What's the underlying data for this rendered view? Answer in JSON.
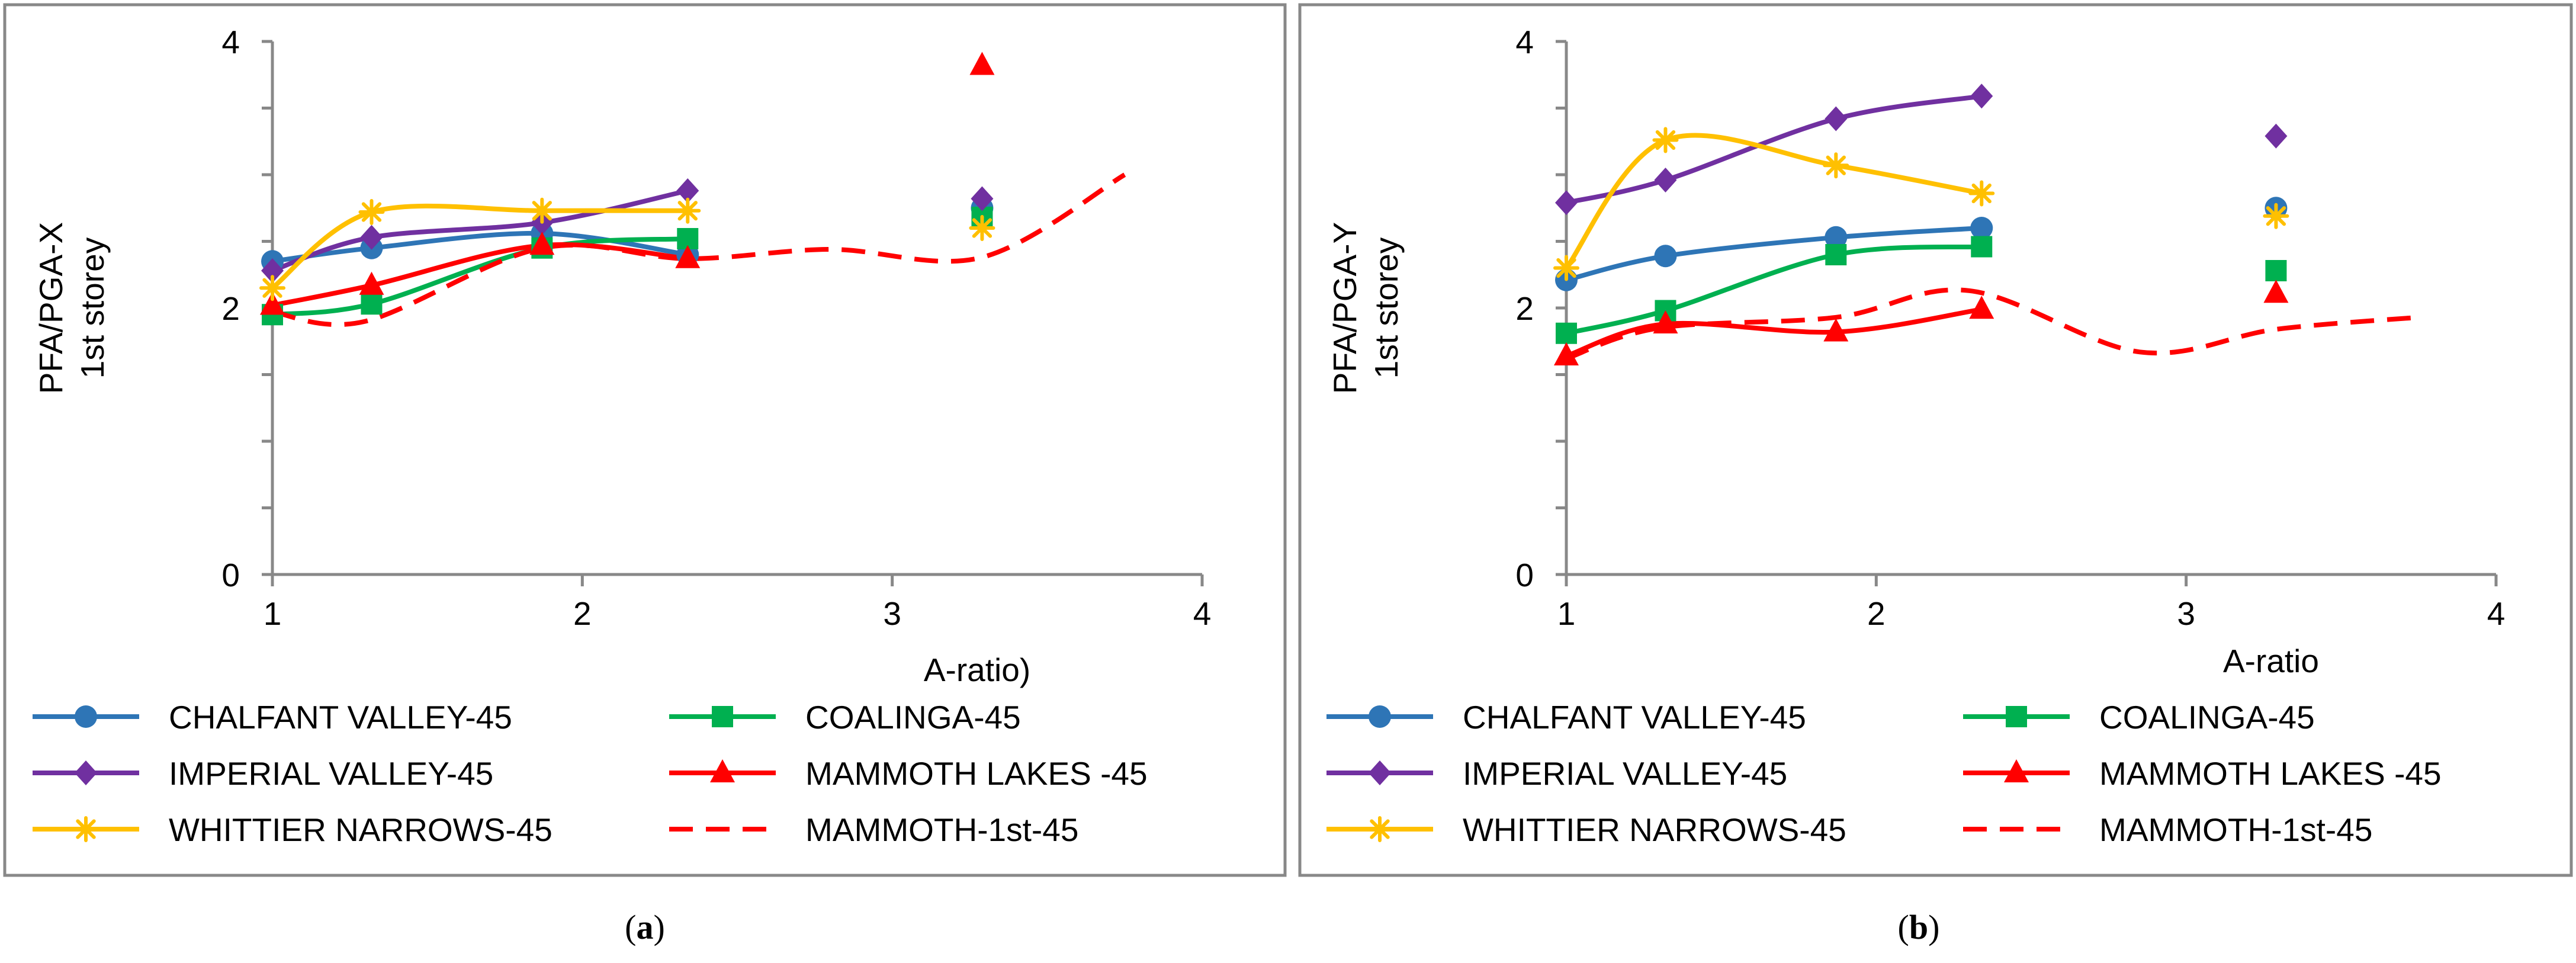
{
  "chart_data": [
    {
      "type": "line",
      "panel_label": "(a)",
      "panel_letter": "a",
      "ylabel_lines": [
        "PFA/PGA-X",
        "1st storey"
      ],
      "xlabel": "A-ratio)",
      "xlim": [
        1,
        4
      ],
      "ylim": [
        0,
        4
      ],
      "xticks": [
        "1",
        "2",
        "3",
        "4"
      ],
      "yticks": [
        "0",
        "2",
        "4"
      ],
      "series": [
        {
          "name": "CHALFANT VALLEY-45",
          "color": "#2E75B6",
          "marker": "circle",
          "style": "solid",
          "x": [
            1,
            1.32,
            1.87,
            2.34
          ],
          "y": [
            2.35,
            2.45,
            2.56,
            2.4
          ],
          "outlier": {
            "x": 3.29,
            "y": 2.75
          }
        },
        {
          "name": "COALINGA-45",
          "color": "#00B050",
          "marker": "square",
          "style": "solid",
          "x": [
            1,
            1.32,
            1.87,
            2.34
          ],
          "y": [
            1.95,
            2.03,
            2.45,
            2.52
          ],
          "outlier": {
            "x": 3.29,
            "y": 2.68
          }
        },
        {
          "name": "IMPERIAL VALLEY-45",
          "color": "#7030A0",
          "marker": "diamond",
          "style": "solid",
          "x": [
            1,
            1.32,
            1.87,
            2.34
          ],
          "y": [
            2.28,
            2.53,
            2.64,
            2.88
          ],
          "outlier": {
            "x": 3.29,
            "y": 2.82
          }
        },
        {
          "name": "MAMMOTH LAKES -45",
          "color": "#FF0000",
          "marker": "triangle",
          "style": "solid",
          "x": [
            1,
            1.32,
            1.87,
            2.34
          ],
          "y": [
            2.02,
            2.17,
            2.47,
            2.37
          ],
          "outlier": {
            "x": 3.29,
            "y": 3.82
          }
        },
        {
          "name": "WHITTIER NARROWS-45",
          "color": "#FFC000",
          "marker": "asterisk",
          "style": "solid",
          "x": [
            1,
            1.32,
            1.87,
            2.34
          ],
          "y": [
            2.15,
            2.72,
            2.73,
            2.73
          ],
          "outlier": {
            "x": 3.29,
            "y": 2.6
          }
        },
        {
          "name": "MAMMOTH-1st-45",
          "color": "#FF0000",
          "marker": "none",
          "style": "dashed",
          "x": [
            1,
            1.3,
            1.87,
            2.34,
            2.8,
            3.29,
            3.75
          ],
          "y": [
            1.97,
            1.9,
            2.45,
            2.37,
            2.44,
            2.38,
            3.0
          ]
        }
      ]
    },
    {
      "type": "line",
      "panel_label": "(b)",
      "panel_letter": "b",
      "ylabel_lines": [
        "PFA/PGA-Y",
        "1st storey"
      ],
      "xlabel": "A-ratio",
      "xlim": [
        1,
        4
      ],
      "ylim": [
        0,
        4
      ],
      "xticks": [
        "1",
        "2",
        "3",
        "4"
      ],
      "yticks": [
        "0",
        "2",
        "4"
      ],
      "series": [
        {
          "name": "CHALFANT VALLEY-45",
          "color": "#2E75B6",
          "marker": "circle",
          "style": "solid",
          "x": [
            1,
            1.32,
            1.87,
            2.34
          ],
          "y": [
            2.21,
            2.39,
            2.53,
            2.6
          ],
          "outlier": {
            "x": 3.29,
            "y": 2.75
          }
        },
        {
          "name": "COALINGA-45",
          "color": "#00B050",
          "marker": "square",
          "style": "solid",
          "x": [
            1,
            1.32,
            1.87,
            2.34
          ],
          "y": [
            1.81,
            1.98,
            2.4,
            2.46
          ],
          "outlier": {
            "x": 3.29,
            "y": 2.28
          }
        },
        {
          "name": "IMPERIAL VALLEY-45",
          "color": "#7030A0",
          "marker": "diamond",
          "style": "solid",
          "x": [
            1,
            1.32,
            1.87,
            2.34
          ],
          "y": [
            2.79,
            2.96,
            3.42,
            3.59
          ],
          "outlier": {
            "x": 3.29,
            "y": 3.29
          }
        },
        {
          "name": "MAMMOTH LAKES -45",
          "color": "#FF0000",
          "marker": "triangle",
          "style": "solid",
          "x": [
            1,
            1.32,
            1.87,
            2.34
          ],
          "y": [
            1.64,
            1.88,
            1.82,
            1.99
          ],
          "outlier": {
            "x": 3.29,
            "y": 2.11
          }
        },
        {
          "name": "WHITTIER NARROWS-45",
          "color": "#FFC000",
          "marker": "asterisk",
          "style": "solid",
          "x": [
            1,
            1.32,
            1.87,
            2.34
          ],
          "y": [
            2.3,
            3.26,
            3.07,
            2.86
          ],
          "outlier": {
            "x": 3.29,
            "y": 2.69
          }
        },
        {
          "name": "MAMMOTH-1st-45",
          "color": "#FF0000",
          "marker": "none",
          "style": "dashed",
          "x": [
            1,
            1.3,
            1.87,
            2.3,
            2.85,
            3.29,
            3.75
          ],
          "y": [
            1.62,
            1.85,
            1.93,
            2.13,
            1.67,
            1.84,
            1.93
          ]
        }
      ]
    }
  ]
}
